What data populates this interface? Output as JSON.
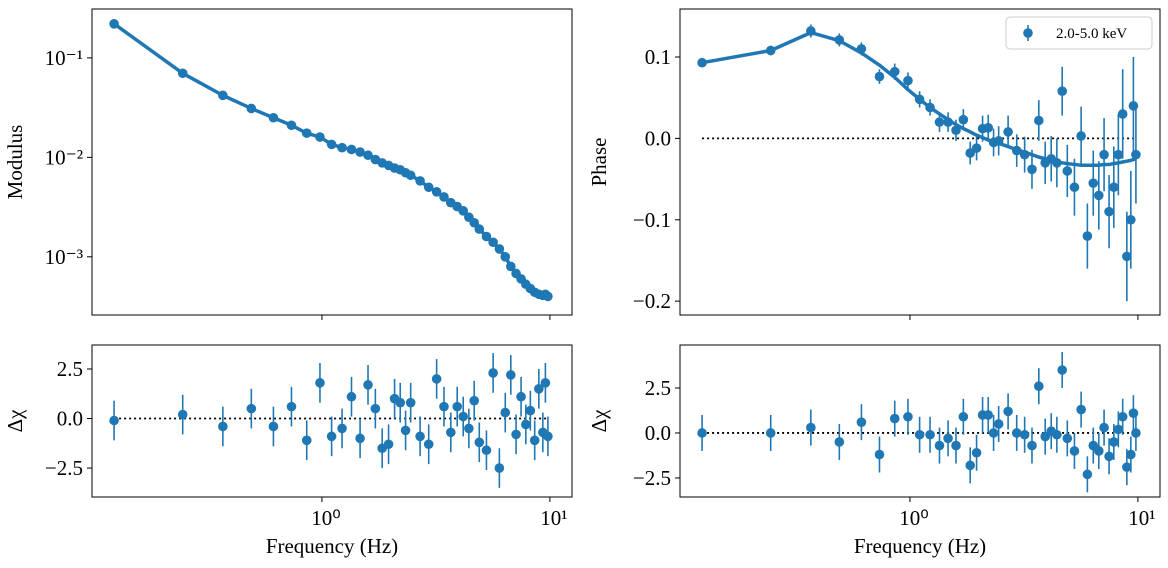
{
  "chart_data": [
    {
      "type": "line",
      "ylabel": "Modulus",
      "xlog": true,
      "ylog": true,
      "xlim": [
        0.098,
        12.5
      ],
      "ylim": [
        0.00026,
        0.31
      ],
      "xticks": [
        1,
        10
      ],
      "yticks": [
        {
          "value": 0.1,
          "label": "10⁻¹"
        },
        {
          "value": 0.01,
          "label": "10⁻²"
        },
        {
          "value": 0.001,
          "label": "10⁻³"
        }
      ],
      "x": [
        0.1225,
        0.245,
        0.3675,
        0.49,
        0.6125,
        0.735,
        0.8575,
        0.98,
        1.1025,
        1.225,
        1.3475,
        1.47,
        1.5925,
        1.715,
        1.8375,
        1.96,
        2.0825,
        2.205,
        2.3275,
        2.45,
        2.695,
        2.94,
        3.185,
        3.43,
        3.675,
        3.92,
        4.165,
        4.41,
        4.655,
        4.9,
        5.2675,
        5.635,
        6.0025,
        6.37,
        6.7375,
        7.105,
        7.4725,
        7.84,
        8.2075,
        8.575,
        8.9425,
        9.31,
        9.555,
        9.8
      ],
      "series": [
        {
          "color": "#1f77b4",
          "line": true,
          "markers": true,
          "values": [
            0.22,
            0.07,
            0.042,
            0.031,
            0.025,
            0.021,
            0.0175,
            0.016,
            0.0135,
            0.0125,
            0.012,
            0.0113,
            0.0105,
            0.0095,
            0.0088,
            0.0083,
            0.0078,
            0.0075,
            0.007,
            0.0066,
            0.0058,
            0.005,
            0.0045,
            0.004,
            0.0035,
            0.0032,
            0.0029,
            0.0025,
            0.0022,
            0.0019,
            0.0016,
            0.0014,
            0.0012,
            0.001,
            0.0008,
            0.00068,
            0.0006,
            0.00053,
            0.00048,
            0.00044,
            0.00042,
            0.00041,
            0.00042,
            0.0004
          ]
        }
      ]
    },
    {
      "type": "errorbar",
      "ylabel": "Phase",
      "xlog": true,
      "xlim": [
        0.098,
        12.5
      ],
      "ylim": [
        -0.217,
        0.159
      ],
      "xticks": [
        1,
        10
      ],
      "yticks": [
        0.1,
        {
          "value": 0,
          "label": "0.0"
        },
        {
          "value": -0.1,
          "label": "−0.1"
        },
        {
          "value": -0.2,
          "label": "−0.2"
        }
      ],
      "hlines": [
        0
      ],
      "legend": "upper right",
      "x": [
        0.1225,
        0.245,
        0.3675,
        0.49,
        0.6125,
        0.735,
        0.8575,
        0.98,
        1.1025,
        1.225,
        1.3475,
        1.47,
        1.5925,
        1.715,
        1.8375,
        1.96,
        2.0825,
        2.205,
        2.3275,
        2.45,
        2.695,
        2.94,
        3.185,
        3.43,
        3.675,
        3.92,
        4.165,
        4.41,
        4.655,
        4.9,
        5.2675,
        5.635,
        6.0025,
        6.37,
        6.7375,
        7.105,
        7.4725,
        7.84,
        8.2075,
        8.575,
        8.9425,
        9.31,
        9.555,
        9.8
      ],
      "series": [
        {
          "name": "2.0-5.0 keV",
          "color": "#1f77b4",
          "values": [
            0.093,
            0.108,
            0.132,
            0.121,
            0.11,
            0.076,
            0.082,
            0.071,
            0.048,
            0.038,
            0.02,
            0.02,
            0.01,
            0.023,
            -0.018,
            -0.012,
            0.012,
            0.013,
            -0.005,
            -0.003,
            0.008,
            -0.015,
            -0.02,
            -0.038,
            0.022,
            -0.03,
            -0.025,
            -0.03,
            0.058,
            -0.04,
            -0.06,
            0.003,
            -0.12,
            -0.055,
            -0.07,
            -0.02,
            -0.09,
            -0.06,
            -0.02,
            0.03,
            -0.145,
            -0.1,
            0.04,
            -0.02
          ],
          "errors": [
            0.005,
            0.006,
            0.008,
            0.008,
            0.008,
            0.009,
            0.01,
            0.01,
            0.01,
            0.01,
            0.012,
            0.012,
            0.013,
            0.013,
            0.014,
            0.015,
            0.016,
            0.016,
            0.017,
            0.018,
            0.02,
            0.02,
            0.022,
            0.024,
            0.025,
            0.026,
            0.028,
            0.03,
            0.03,
            0.032,
            0.035,
            0.036,
            0.04,
            0.04,
            0.042,
            0.045,
            0.045,
            0.05,
            0.05,
            0.055,
            0.055,
            0.06,
            0.06,
            0.06
          ]
        },
        {
          "color": "#1f77b4",
          "line": true,
          "values": [
            0.093,
            0.108,
            0.13,
            0.12,
            0.105,
            0.09,
            0.075,
            0.06,
            0.048,
            0.038,
            0.03,
            0.023,
            0.017,
            0.012,
            0.008,
            0.004,
            0.001,
            -0.002,
            -0.004,
            -0.006,
            -0.01,
            -0.014,
            -0.017,
            -0.02,
            -0.023,
            -0.025,
            -0.027,
            -0.029,
            -0.03,
            -0.031,
            -0.032,
            -0.033,
            -0.033,
            -0.033,
            -0.033,
            -0.032,
            -0.032,
            -0.031,
            -0.03,
            -0.029,
            -0.028,
            -0.027,
            -0.026,
            -0.025
          ]
        }
      ]
    },
    {
      "type": "errorbar",
      "ylabel": "Δχ",
      "xlabel": "Frequency (Hz)",
      "xlog": true,
      "xlim": [
        0.098,
        12.5
      ],
      "ylim": [
        -3.96,
        3.71
      ],
      "xticks": [
        {
          "value": 1,
          "label": "10⁰"
        },
        {
          "value": 10,
          "label": "10¹"
        }
      ],
      "yticks": [
        2.5,
        {
          "value": 0,
          "label": "0.0"
        },
        {
          "value": -2.5,
          "label": "−2.5"
        }
      ],
      "hlines": [
        0
      ],
      "x": [
        0.1225,
        0.245,
        0.3675,
        0.49,
        0.6125,
        0.735,
        0.8575,
        0.98,
        1.1025,
        1.225,
        1.3475,
        1.47,
        1.5925,
        1.715,
        1.8375,
        1.96,
        2.0825,
        2.205,
        2.3275,
        2.45,
        2.695,
        2.94,
        3.185,
        3.43,
        3.675,
        3.92,
        4.165,
        4.41,
        4.655,
        4.9,
        5.2675,
        5.635,
        6.0025,
        6.37,
        6.7375,
        7.105,
        7.4725,
        7.84,
        8.2075,
        8.575,
        8.9425,
        9.31,
        9.555,
        9.8
      ],
      "series": [
        {
          "color": "#1f77b4",
          "values": [
            -0.1,
            0.2,
            -0.4,
            0.5,
            -0.4,
            0.6,
            -1.1,
            1.8,
            -0.9,
            -0.5,
            1.1,
            -1.0,
            1.7,
            0.5,
            -1.5,
            -1.3,
            1.0,
            0.8,
            -0.6,
            0.8,
            -0.9,
            -1.3,
            2.0,
            0.6,
            -0.7,
            0.6,
            0.1,
            -0.5,
            0.9,
            -1.2,
            -1.6,
            2.3,
            -2.5,
            0.3,
            2.2,
            -0.8,
            1.1,
            -0.3,
            0.4,
            -1.1,
            1.5,
            -0.7,
            1.8,
            -0.9
          ],
          "errors": [
            1,
            1,
            1,
            1,
            1,
            1,
            1,
            1,
            1,
            1,
            1,
            1,
            1,
            1,
            1,
            1,
            1,
            1,
            1,
            1,
            1,
            1,
            1,
            1,
            1,
            1,
            1,
            1,
            1,
            1,
            1,
            1,
            1,
            1,
            1,
            1,
            1,
            1,
            1,
            1,
            1,
            1,
            1,
            1
          ]
        }
      ]
    },
    {
      "type": "errorbar",
      "ylabel": "Δχ",
      "xlabel": "Frequency (Hz)",
      "xlog": true,
      "xlim": [
        0.098,
        12.5
      ],
      "ylim": [
        -3.56,
        4.89
      ],
      "xticks": [
        {
          "value": 1,
          "label": "10⁰"
        },
        {
          "value": 10,
          "label": "10¹"
        }
      ],
      "yticks": [
        2.5,
        {
          "value": 0,
          "label": "0.0"
        },
        {
          "value": -2.5,
          "label": "−2.5"
        }
      ],
      "hlines": [
        0
      ],
      "x": [
        0.1225,
        0.245,
        0.3675,
        0.49,
        0.6125,
        0.735,
        0.8575,
        0.98,
        1.1025,
        1.225,
        1.3475,
        1.47,
        1.5925,
        1.715,
        1.8375,
        1.96,
        2.0825,
        2.205,
        2.3275,
        2.45,
        2.695,
        2.94,
        3.185,
        3.43,
        3.675,
        3.92,
        4.165,
        4.41,
        4.655,
        4.9,
        5.2675,
        5.635,
        6.0025,
        6.37,
        6.7375,
        7.105,
        7.4725,
        7.84,
        8.2075,
        8.575,
        8.9425,
        9.31,
        9.555,
        9.8
      ],
      "series": [
        {
          "color": "#1f77b4",
          "values": [
            0.0,
            0.0,
            0.3,
            -0.5,
            0.6,
            -1.2,
            0.8,
            0.9,
            -0.1,
            -0.1,
            -0.7,
            -0.3,
            -0.7,
            0.9,
            -1.8,
            -1.1,
            1.0,
            1.0,
            0.0,
            0.5,
            1.2,
            0.0,
            -0.1,
            -0.7,
            2.6,
            -0.2,
            0.1,
            -0.1,
            3.5,
            -0.3,
            -1.0,
            1.3,
            -2.3,
            -0.7,
            -1.0,
            0.3,
            -1.3,
            -0.5,
            0.2,
            0.9,
            -1.9,
            -1.2,
            1.1,
            0.0
          ],
          "errors": [
            1,
            1,
            1,
            1,
            1,
            1,
            1,
            1,
            1,
            1,
            1,
            1,
            1,
            1,
            1,
            1,
            1,
            1,
            1,
            1,
            1,
            1,
            1,
            1,
            1,
            1,
            1,
            1,
            1,
            1,
            1,
            1,
            1,
            1,
            1,
            1,
            1,
            1,
            1,
            1,
            1,
            1,
            1,
            1
          ]
        }
      ]
    }
  ]
}
